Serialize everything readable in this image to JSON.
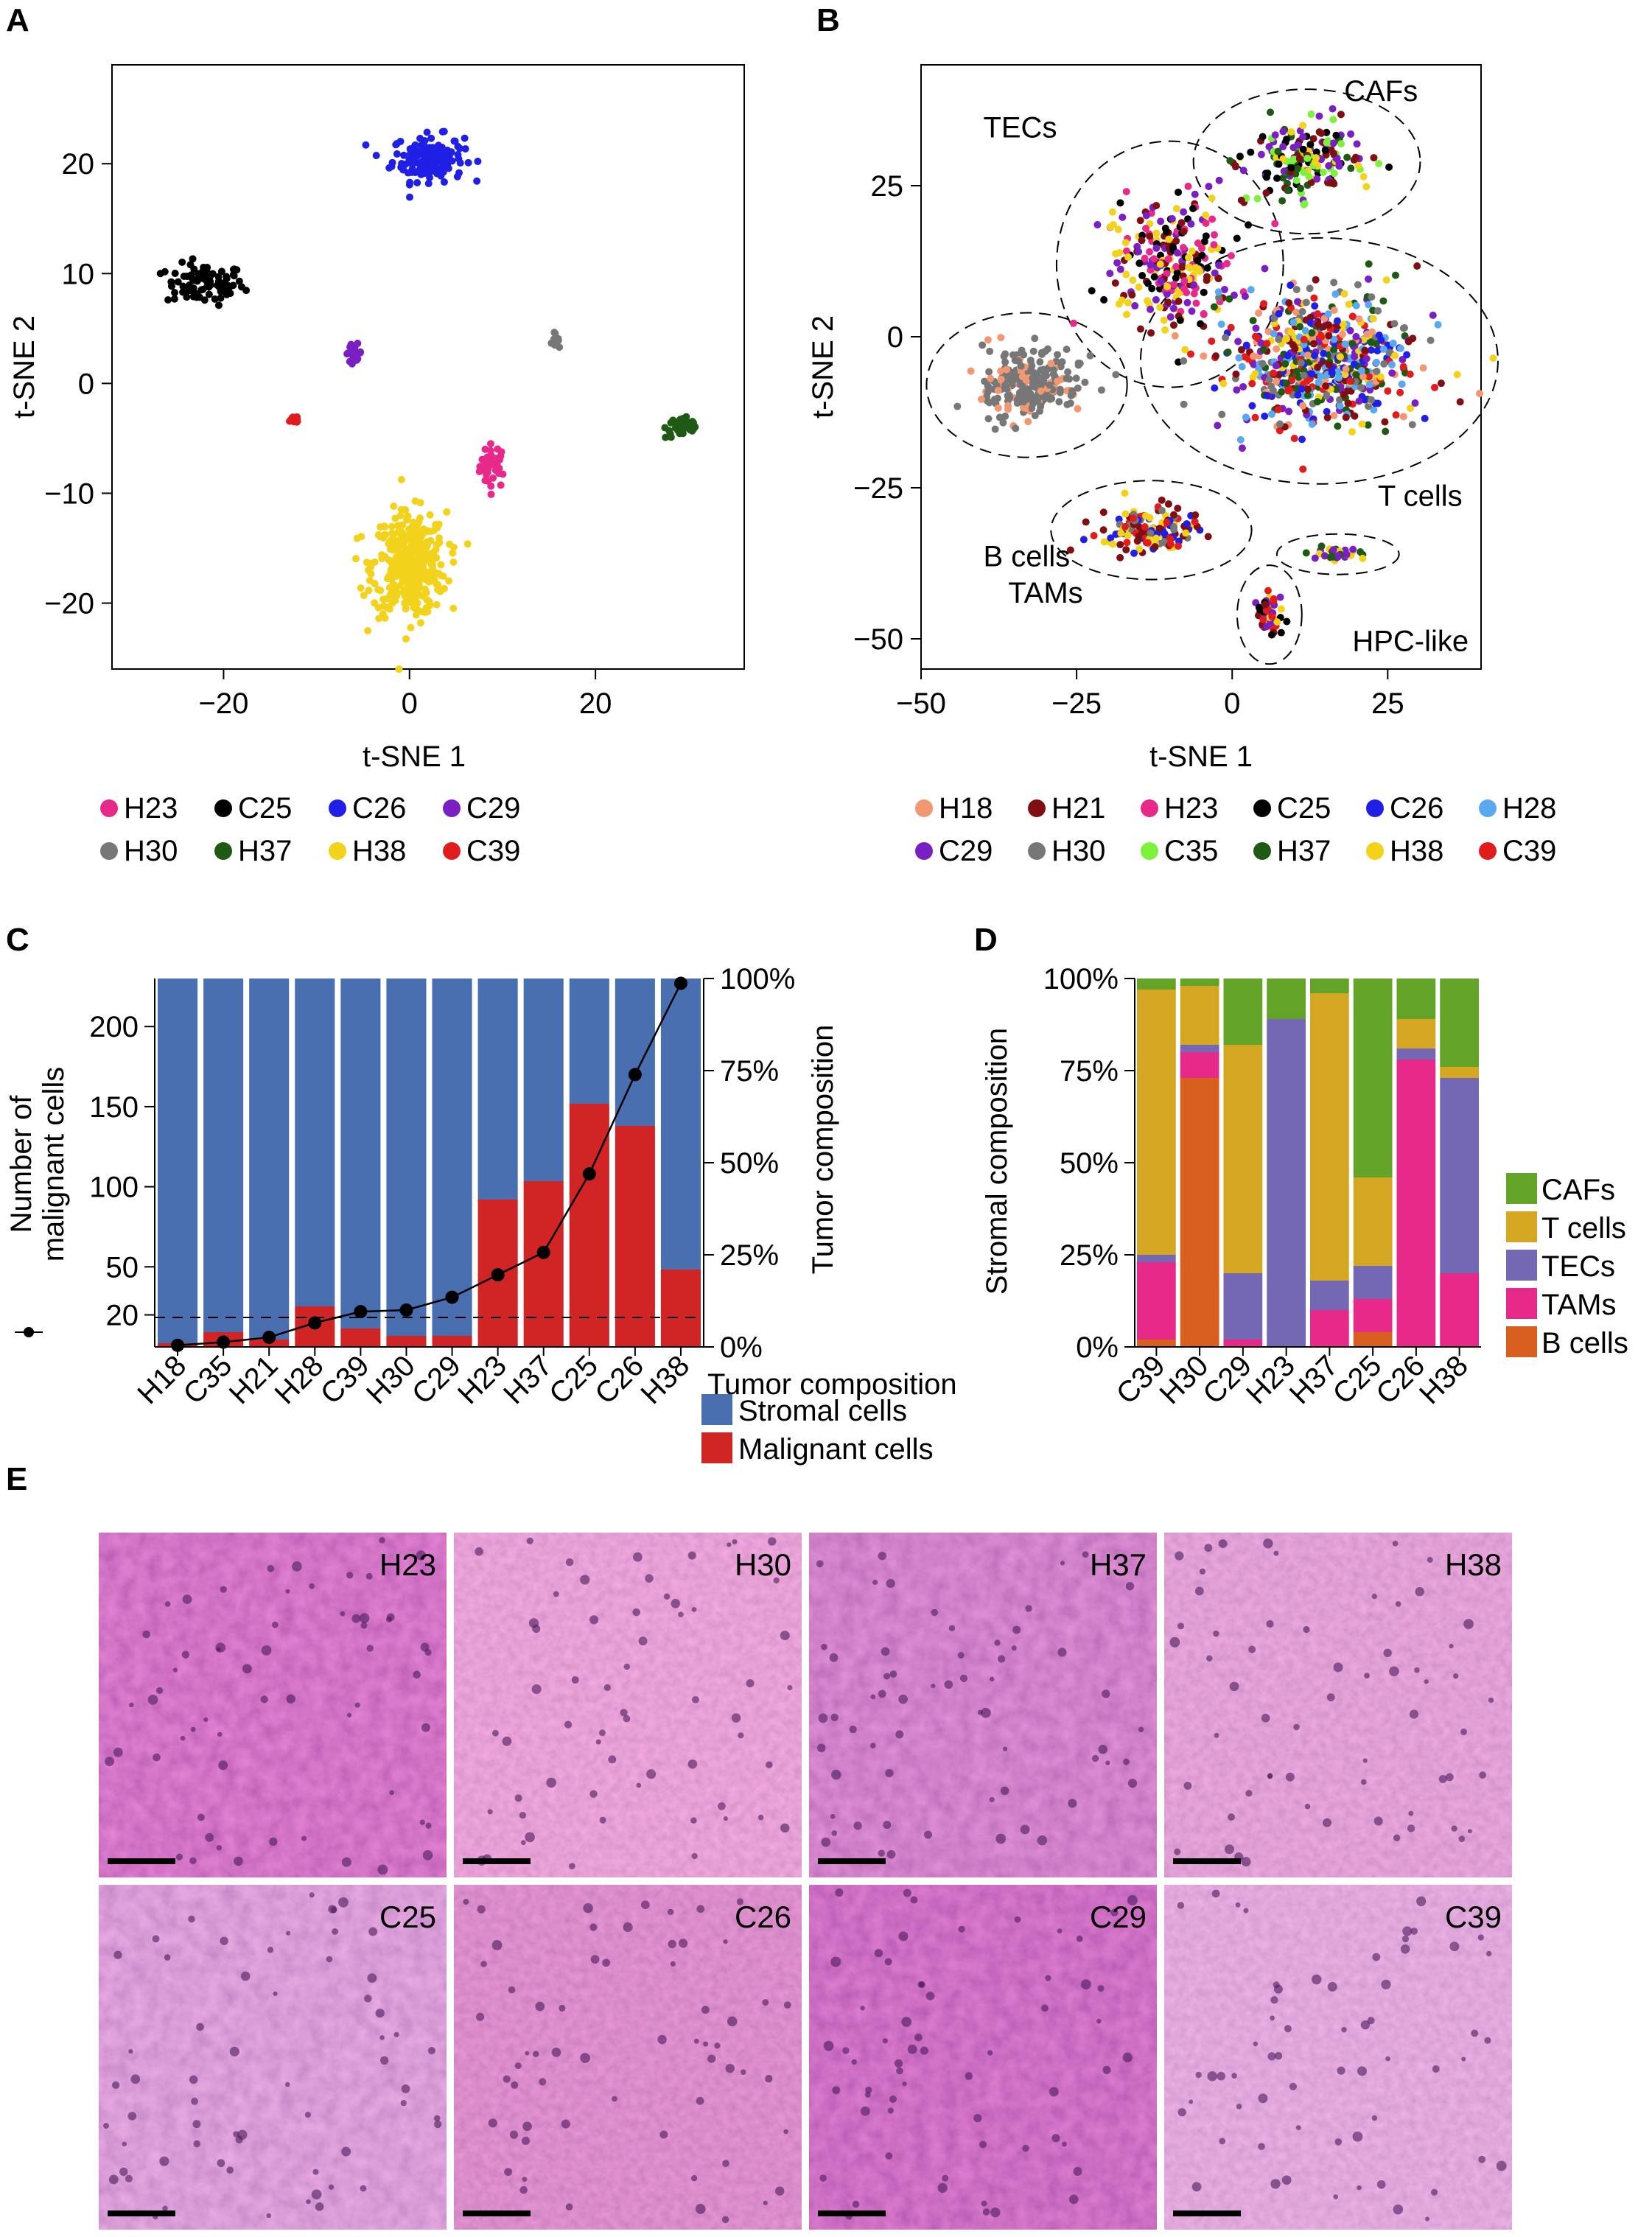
{
  "panels": {
    "a": "A",
    "b": "B",
    "c": "C",
    "d": "D",
    "e": "E"
  },
  "chart_data": [
    {
      "id": "A",
      "type": "scatter",
      "xlabel": "t-SNE 1",
      "ylabel": "t-SNE 2",
      "xlim": [
        -32,
        36
      ],
      "ylim": [
        -26,
        29
      ],
      "xticks": [
        -20,
        0,
        20
      ],
      "yticks": [
        -20,
        -10,
        0,
        10,
        20
      ],
      "tick_labels": {
        "x": [
          "−20",
          "0",
          "20"
        ],
        "y": [
          "−20",
          "−10",
          "0",
          "10",
          "20"
        ]
      },
      "series": [
        {
          "name": "H23",
          "color": "#e7298a",
          "cx": 9,
          "cy": -7.5,
          "sx": 1.3,
          "sy": 1.8,
          "n": 40
        },
        {
          "name": "C25",
          "color": "#000000",
          "cx": -22,
          "cy": 9,
          "sx": 3.8,
          "sy": 1.7,
          "n": 85
        },
        {
          "name": "C26",
          "color": "#1f1fe6",
          "cx": 2,
          "cy": 20.5,
          "sx": 3.5,
          "sy": 1.9,
          "n": 160
        },
        {
          "name": "C29",
          "color": "#7a1fc2",
          "cx": -6,
          "cy": 2.8,
          "sx": 0.8,
          "sy": 0.7,
          "n": 20
        },
        {
          "name": "H30",
          "color": "#777777",
          "cx": 15.5,
          "cy": 4,
          "sx": 0.5,
          "sy": 0.5,
          "n": 12
        },
        {
          "name": "H37",
          "color": "#1f5a14",
          "cx": 29.5,
          "cy": -4,
          "sx": 1.8,
          "sy": 0.9,
          "n": 42
        },
        {
          "name": "H38",
          "color": "#f2d21b",
          "cx": 0,
          "cy": -16.5,
          "sx": 3.6,
          "sy": 4.3,
          "n": 380
        },
        {
          "name": "C39",
          "color": "#e11c1c",
          "cx": -12.5,
          "cy": -3.3,
          "sx": 0.7,
          "sy": 0.4,
          "n": 14
        }
      ],
      "legend": [
        "H23",
        "C25",
        "C26",
        "C29",
        "H30",
        "H37",
        "H38",
        "C39"
      ]
    },
    {
      "id": "B",
      "type": "scatter",
      "xlabel": "t-SNE 1",
      "ylabel": "t-SNE 2",
      "xlim": [
        -50,
        40
      ],
      "ylim": [
        -55,
        45
      ],
      "xticks": [
        -50,
        -25,
        0,
        25
      ],
      "yticks": [
        -50,
        -25,
        0,
        25
      ],
      "tick_labels": {
        "x": [
          "−50",
          "−25",
          "0",
          "25"
        ],
        "y": [
          "−50",
          "−25",
          "0",
          "25"
        ]
      },
      "clusters": [
        {
          "label": "TECs",
          "cx": -10,
          "cy": 12,
          "sx": 8,
          "sy": 9,
          "n": 260,
          "colors": [
            "H38",
            "H21",
            "C29",
            "H23",
            "C25"
          ]
        },
        {
          "label": "CAFs",
          "cx": 12,
          "cy": 29,
          "sx": 8,
          "sy": 5,
          "n": 190,
          "colors": [
            "H38",
            "H21",
            "C35",
            "C29",
            "H37",
            "C25"
          ]
        },
        {
          "label": "B cells",
          "cx": -33,
          "cy": -8,
          "sx": 7,
          "sy": 5,
          "n": 240,
          "colors": [
            "H30",
            "H30",
            "H30",
            "H18"
          ]
        },
        {
          "label": "T cells",
          "cx": 14,
          "cy": -4,
          "sx": 13,
          "sy": 9,
          "n": 620,
          "colors": [
            "C29",
            "C39",
            "H21",
            "C26",
            "H18",
            "H28",
            "H37",
            "H38",
            "H30"
          ]
        },
        {
          "label": "TAMs",
          "cx": -13,
          "cy": -32,
          "sx": 7,
          "sy": 3.2,
          "n": 140,
          "colors": [
            "H38",
            "H21",
            "C26",
            "H30",
            "C39"
          ]
        },
        {
          "label": "HPC-like",
          "cx": 17,
          "cy": -36,
          "sx": 4,
          "sy": 0.9,
          "n": 35,
          "colors": [
            "H38",
            "H37",
            "C29"
          ]
        },
        {
          "label": "",
          "cx": 6,
          "cy": -46,
          "sx": 1.8,
          "sy": 3.2,
          "n": 55,
          "colors": [
            "H21",
            "C25",
            "C29",
            "C39",
            "H38"
          ]
        }
      ],
      "legend": [
        {
          "name": "H18",
          "color": "#f39672"
        },
        {
          "name": "H21",
          "color": "#7f0f12"
        },
        {
          "name": "H23",
          "color": "#e7298a"
        },
        {
          "name": "C25",
          "color": "#000000"
        },
        {
          "name": "C26",
          "color": "#1f1fe6"
        },
        {
          "name": "H28",
          "color": "#5aa8f2"
        },
        {
          "name": "C29",
          "color": "#7a1fc2"
        },
        {
          "name": "H30",
          "color": "#777777"
        },
        {
          "name": "C35",
          "color": "#7cf23d"
        },
        {
          "name": "H37",
          "color": "#1f5a14"
        },
        {
          "name": "H38",
          "color": "#f2d21b"
        },
        {
          "name": "C39",
          "color": "#e11c1c"
        }
      ]
    },
    {
      "id": "C",
      "type": "bar",
      "categories": [
        "H18",
        "C35",
        "H21",
        "H28",
        "C39",
        "H30",
        "C29",
        "H23",
        "H37",
        "C25",
        "C26",
        "H38"
      ],
      "series": [
        {
          "name": "Stromal cells",
          "color": "#4a6fb0",
          "values": [
            99,
            96,
            98,
            89,
            95,
            97,
            97,
            60,
            55,
            34,
            40,
            79
          ]
        },
        {
          "name": "Malignant cells",
          "color": "#d12424",
          "values": [
            1,
            4,
            2,
            11,
            5,
            3,
            3,
            40,
            45,
            66,
            60,
            21
          ]
        }
      ],
      "line": {
        "name": "Number of malignant cells",
        "values": [
          1,
          3,
          6,
          15,
          22,
          23,
          31,
          45,
          59,
          108,
          170,
          227
        ]
      },
      "threshold": 20,
      "ylabel_left": [
        "Number of",
        "malignant cells"
      ],
      "ylabel_right": "Tumor composition",
      "yticks_left": [
        "20",
        "50",
        "100",
        "150",
        "200"
      ],
      "yticks_right": [
        "0%",
        "25%",
        "50%",
        "75%",
        "100%"
      ],
      "legend_title": "Tumor composition",
      "ylim_left": [
        0,
        230
      ],
      "ylim_right": [
        0,
        100
      ]
    },
    {
      "id": "D",
      "type": "bar",
      "categories": [
        "C39",
        "H30",
        "C29",
        "H23",
        "H37",
        "C25",
        "C26",
        "H38"
      ],
      "series": [
        {
          "name": "B cells",
          "color": "#d95f1e",
          "values": [
            2,
            73,
            0,
            0,
            0,
            4,
            0,
            0
          ]
        },
        {
          "name": "TAMs",
          "color": "#e7298a",
          "values": [
            21,
            7,
            2,
            0,
            10,
            9,
            78,
            20
          ]
        },
        {
          "name": "TECs",
          "color": "#7468b4",
          "values": [
            2,
            2,
            18,
            89,
            8,
            9,
            3,
            53
          ]
        },
        {
          "name": "T cells",
          "color": "#d4a621",
          "values": [
            72,
            16,
            62,
            0,
            78,
            24,
            8,
            3
          ]
        },
        {
          "name": "CAFs",
          "color": "#63a327",
          "values": [
            3,
            2,
            18,
            11,
            4,
            54,
            11,
            24
          ]
        }
      ],
      "ylabel": "Stromal composition",
      "yticks": [
        "0%",
        "25%",
        "50%",
        "75%",
        "100%"
      ],
      "legend": [
        "CAFs",
        "T cells",
        "TECs",
        "TAMs",
        "B cells"
      ],
      "ylim": [
        0,
        100
      ]
    }
  ],
  "histology": {
    "labels": [
      "H23",
      "H30",
      "H37",
      "H38",
      "C25",
      "C26",
      "C29",
      "C39"
    ]
  }
}
